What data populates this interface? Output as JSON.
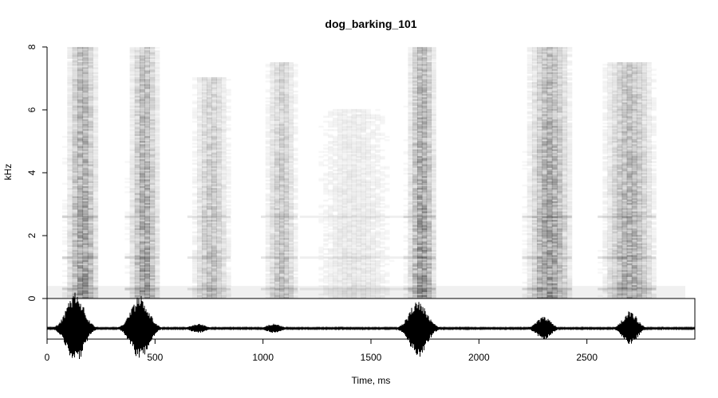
{
  "chart_data": {
    "type": "spectrogram",
    "title": "dog_barking_101",
    "xlabel": "Time, ms",
    "ylabel": "kHz",
    "xlim": [
      0,
      3000
    ],
    "ylim": [
      0,
      8
    ],
    "x_ticks": [
      0,
      500,
      1000,
      1500,
      2000,
      2500
    ],
    "y_ticks": [
      0,
      2,
      4,
      6,
      8
    ],
    "colormap": "grayscale (white = low energy, black = high energy)",
    "bark_segments_ms": [
      {
        "start": 70,
        "end": 235,
        "intensity": 0.85,
        "max_khz": 8
      },
      {
        "start": 360,
        "end": 520,
        "intensity": 0.8,
        "max_khz": 8
      },
      {
        "start": 650,
        "end": 850,
        "intensity": 0.5,
        "max_khz": 7
      },
      {
        "start": 990,
        "end": 1160,
        "intensity": 0.5,
        "max_khz": 7.5
      },
      {
        "start": 1170,
        "end": 1650,
        "intensity": 0.2,
        "max_khz": 6
      },
      {
        "start": 1650,
        "end": 1800,
        "intensity": 0.9,
        "max_khz": 8
      },
      {
        "start": 2200,
        "end": 2430,
        "intensity": 0.85,
        "max_khz": 8
      },
      {
        "start": 2550,
        "end": 2820,
        "intensity": 0.7,
        "max_khz": 7.5
      }
    ],
    "harmonic_bands_khz": [
      0.3,
      1.3,
      2.6
    ],
    "waveform_peaks_ms": [
      {
        "t": 130,
        "amplitude": 0.95
      },
      {
        "t": 430,
        "amplitude": 0.85
      },
      {
        "t": 700,
        "amplitude": 0.12
      },
      {
        "t": 1050,
        "amplitude": 0.12
      },
      {
        "t": 1720,
        "amplitude": 0.75
      },
      {
        "t": 2300,
        "amplitude": 0.3
      },
      {
        "t": 2700,
        "amplitude": 0.45
      }
    ],
    "waveform_end_ms": 3000
  }
}
